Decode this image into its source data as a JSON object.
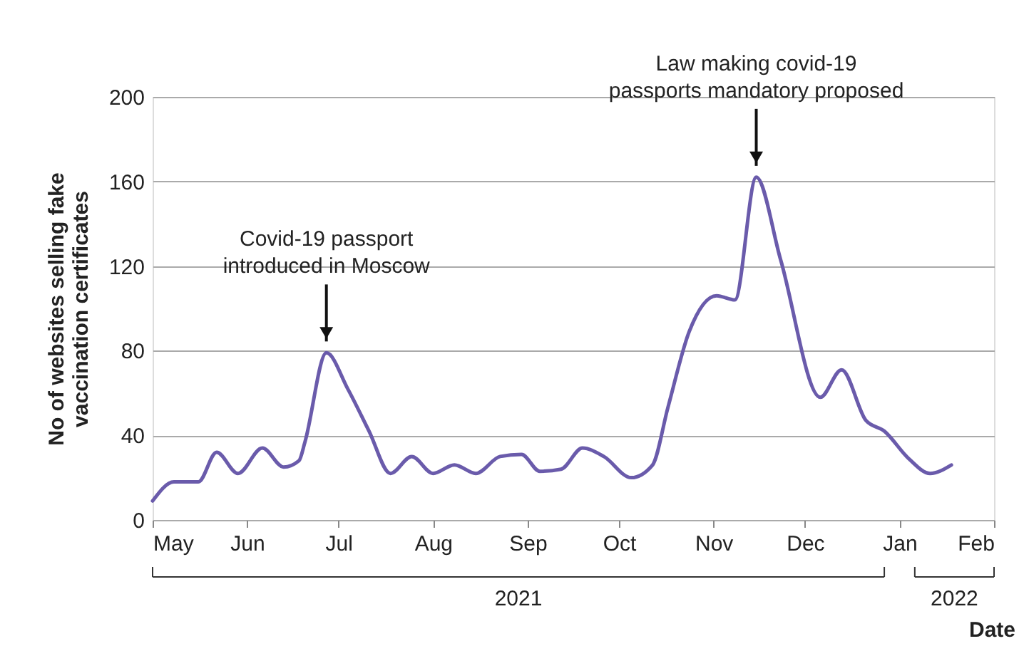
{
  "chart_data": {
    "type": "line",
    "xlabel": "Date",
    "ylabel": "No of websites selling fake vaccination certificates",
    "x": [
      "2021-05-01",
      "2021-05-08",
      "2021-05-16",
      "2021-05-22",
      "2021-05-29",
      "2021-06-06",
      "2021-06-13",
      "2021-06-18",
      "2021-06-20",
      "2021-06-27",
      "2021-07-04",
      "2021-07-11",
      "2021-07-18",
      "2021-07-25",
      "2021-08-01",
      "2021-08-08",
      "2021-08-15",
      "2021-08-23",
      "2021-08-30",
      "2021-09-05",
      "2021-09-12",
      "2021-09-19",
      "2021-09-26",
      "2021-10-05",
      "2021-10-12",
      "2021-10-17",
      "2021-10-24",
      "2021-11-02",
      "2021-11-08",
      "2021-11-15",
      "2021-11-23",
      "2021-12-06",
      "2021-12-13",
      "2021-12-21",
      "2021-12-27",
      "2022-01-04",
      "2022-01-11",
      "2022-01-18"
    ],
    "series": [
      {
        "color": "#6a5bab",
        "values": [
          9,
          18,
          18,
          32,
          22,
          34,
          25,
          28,
          37,
          79,
          62,
          42,
          22,
          30,
          22,
          26,
          22,
          30,
          31,
          23,
          24,
          34,
          30,
          20,
          26,
          53,
          89,
          106,
          104,
          162,
          123,
          58,
          71,
          47,
          42,
          29,
          22,
          26
        ]
      }
    ],
    "xlim": [
      "2021-05-01",
      "2022-02-01"
    ],
    "xticks": [
      {
        "value": "2021-05-01",
        "label": "May"
      },
      {
        "value": "2021-06-01",
        "label": "Jun"
      },
      {
        "value": "2021-07-01",
        "label": "Jul"
      },
      {
        "value": "2021-08-01",
        "label": "Aug"
      },
      {
        "value": "2021-09-01",
        "label": "Sep"
      },
      {
        "value": "2021-10-01",
        "label": "Oct"
      },
      {
        "value": "2021-11-01",
        "label": "Nov"
      },
      {
        "value": "2021-12-01",
        "label": "Dec"
      },
      {
        "value": "2022-01-01",
        "label": "Jan"
      },
      {
        "value": "2022-02-01",
        "label": "Feb"
      }
    ],
    "ylim": [
      0,
      200
    ],
    "yticks": [
      0,
      40,
      80,
      120,
      160,
      200
    ],
    "grid": "y",
    "marker": "none",
    "line_style": "solid",
    "annotations": [
      {
        "text": "Covid-19 passport introduced in Moscow",
        "x": "2021-06-27",
        "y": 79
      },
      {
        "text": "Law making covid-19 passports mandatory proposed",
        "x": "2021-11-15",
        "y": 162
      },
      "2021",
      "2022"
    ]
  }
}
